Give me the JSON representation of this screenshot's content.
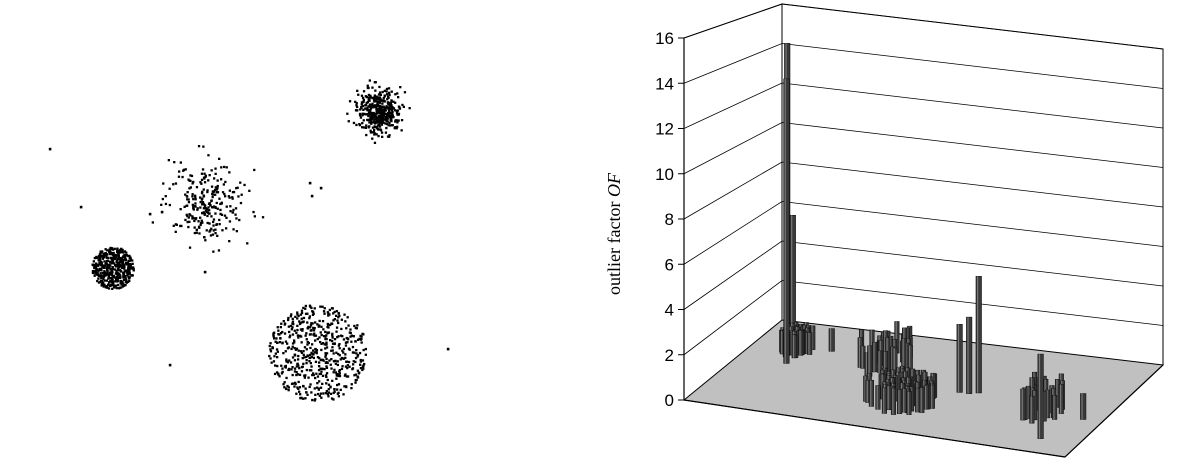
{
  "chart_data": [
    {
      "type": "scatter",
      "title": "",
      "xlabel": "",
      "ylabel": "",
      "grid": false,
      "axes_visible": false,
      "xlim": [
        0,
        590
      ],
      "ylim": [
        0,
        470
      ],
      "series": [
        {
          "cluster": "dense-top-right",
          "center": [
            379,
            111
          ],
          "radius": 20,
          "count": 420,
          "density": "dense",
          "shape": "gaussian"
        },
        {
          "cluster": "sparse-upper-left",
          "center": [
            207,
            203
          ],
          "radius": 36,
          "count": 260,
          "density": "sparse",
          "shape": "gaussian"
        },
        {
          "cluster": "dense-small-left",
          "center": [
            113,
            268
          ],
          "radius": 21,
          "count": 460,
          "density": "dense",
          "shape": "disk"
        },
        {
          "cluster": "large-bottom",
          "center": [
            318,
            353
          ],
          "radius": 49,
          "count": 560,
          "density": "medium",
          "shape": "disk"
        }
      ],
      "outliers": [
        [
          50,
          149
        ],
        [
          81,
          207
        ],
        [
          310,
          183
        ],
        [
          321,
          188
        ],
        [
          312,
          196
        ],
        [
          170,
          365
        ],
        [
          448,
          349
        ],
        [
          150,
          214
        ],
        [
          162,
          212
        ],
        [
          205,
          272
        ]
      ]
    },
    {
      "type": "bar",
      "subtype": "3d-bar",
      "title": "",
      "ylabel_prefix": "outlier factor ",
      "ylabel_italic": "OF",
      "ylim": [
        0,
        16
      ],
      "yticks": [
        "0",
        "2",
        "4",
        "6",
        "8",
        "10",
        "12",
        "14",
        "16"
      ],
      "grid": true,
      "floor_color": "#c0c0c0",
      "bar_color": "#3a3a3a",
      "outlier_bars": [
        {
          "x": 0.06,
          "z": 0.18,
          "value": 14.5
        },
        {
          "x": 0.085,
          "z": 0.22,
          "value": 6.2
        },
        {
          "x": 0.13,
          "z": 0.46,
          "value": 13.5
        },
        {
          "x": 0.2,
          "z": 0.27,
          "value": 1.1
        },
        {
          "x": 0.6,
          "z": 0.52,
          "value": 3.2
        },
        {
          "x": 0.625,
          "z": 0.52,
          "value": 3.6
        },
        {
          "x": 0.645,
          "z": 0.5,
          "value": 5.5
        },
        {
          "x": 0.9,
          "z": 0.86,
          "value": 3.8
        },
        {
          "x": 0.95,
          "z": 0.62,
          "value": 1.2
        }
      ],
      "cluster_bars": [
        {
          "x": 0.12,
          "z": 0.32,
          "rx": 0.04,
          "rz": 0.08,
          "count": 40,
          "value_min": 1.0,
          "value_max": 1.2
        },
        {
          "x": 0.36,
          "z": 0.34,
          "rx": 0.07,
          "rz": 0.14,
          "count": 32,
          "value_min": 1.0,
          "value_max": 1.7
        },
        {
          "x": 0.49,
          "z": 0.7,
          "rx": 0.09,
          "rz": 0.14,
          "count": 70,
          "value_min": 1.0,
          "value_max": 1.2
        },
        {
          "x": 0.84,
          "z": 0.62,
          "rx": 0.05,
          "rz": 0.12,
          "count": 28,
          "value_min": 1.0,
          "value_max": 1.6
        }
      ]
    }
  ]
}
